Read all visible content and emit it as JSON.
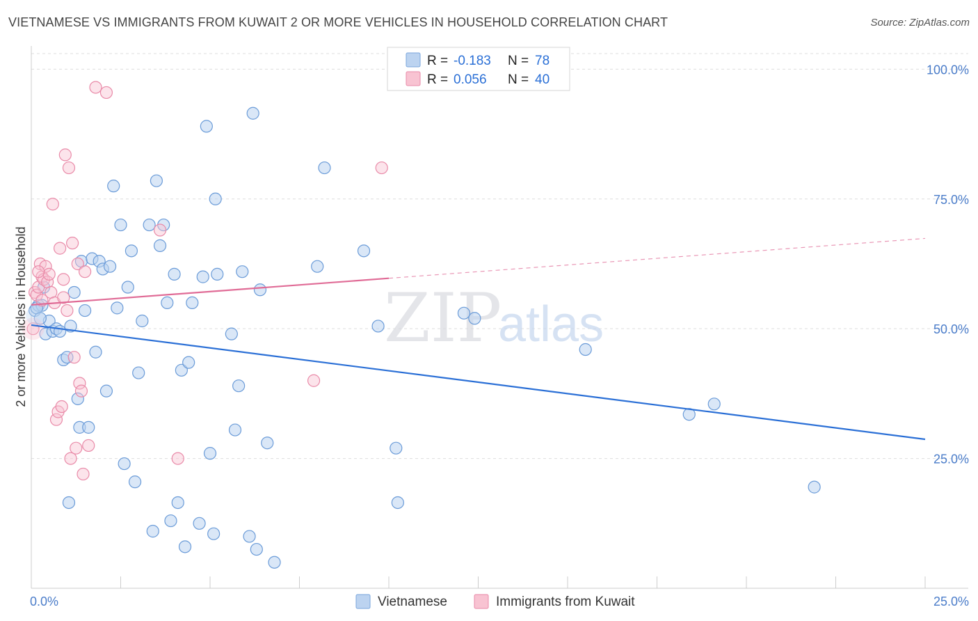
{
  "title": "VIETNAMESE VS IMMIGRANTS FROM KUWAIT 2 OR MORE VEHICLES IN HOUSEHOLD CORRELATION CHART",
  "source": "Source: ZipAtlas.com",
  "colors": {
    "blue": "#5b9bd5",
    "blue_line": "#2a6fd6",
    "pink": "#e98aa8",
    "pink_line": "#e06b96",
    "axis_text": "#4a7cc9",
    "grid": "#dddddd"
  },
  "chart_data": {
    "type": "scatter",
    "title": "VIETNAMESE VS IMMIGRANTS FROM KUWAIT 2 OR MORE VEHICLES IN HOUSEHOLD CORRELATION CHART",
    "xlabel": "",
    "ylabel": "2 or more Vehicles in Household",
    "xlim": [
      0,
      25
    ],
    "ylim": [
      0,
      103
    ],
    "x_tick_labels": [
      "0.0%",
      "25.0%"
    ],
    "y_ticks": [
      25,
      50,
      75,
      100
    ],
    "y_tick_labels": [
      "25.0%",
      "50.0%",
      "75.0%",
      "100.0%"
    ],
    "watermark": {
      "zip": "ZIP",
      "atlas": "atlas"
    },
    "legend_top": [
      {
        "r_label": "R =",
        "r_value": "-0.183",
        "n_label": "N =",
        "n_value": "78"
      },
      {
        "r_label": "R =",
        "r_value": "0.056",
        "n_label": "N =",
        "n_value": "40"
      }
    ],
    "legend_bottom": [
      "Vietnamese",
      "Immigrants from Kuwait"
    ],
    "series": [
      {
        "name": "Vietnamese",
        "trend": {
          "x0": 0,
          "y0": 50.7,
          "x1": 25,
          "y1": 28.7,
          "dashed_from": null
        },
        "points": [
          [
            0.1,
            53.5
          ],
          [
            0.2,
            54.5
          ],
          [
            0.3,
            54.5
          ],
          [
            0.4,
            49.0
          ],
          [
            0.5,
            51.5
          ],
          [
            0.6,
            49.5
          ],
          [
            0.7,
            50.0
          ],
          [
            0.8,
            49.5
          ],
          [
            0.9,
            44.0
          ],
          [
            1.0,
            44.5
          ],
          [
            1.1,
            50.5
          ],
          [
            1.2,
            57.0
          ],
          [
            1.3,
            36.5
          ],
          [
            1.35,
            31.0
          ],
          [
            1.4,
            63.0
          ],
          [
            1.5,
            53.5
          ],
          [
            1.6,
            31.0
          ],
          [
            1.7,
            63.5
          ],
          [
            1.8,
            45.5
          ],
          [
            1.9,
            63.0
          ],
          [
            2.0,
            61.5
          ],
          [
            2.1,
            38.0
          ],
          [
            2.2,
            62.0
          ],
          [
            2.3,
            77.5
          ],
          [
            2.4,
            54.0
          ],
          [
            2.5,
            70.0
          ],
          [
            2.6,
            24.0
          ],
          [
            2.7,
            58.0
          ],
          [
            2.8,
            65.0
          ],
          [
            2.9,
            20.5
          ],
          [
            3.0,
            41.5
          ],
          [
            3.1,
            51.5
          ],
          [
            3.3,
            70.0
          ],
          [
            3.4,
            11.0
          ],
          [
            3.5,
            78.5
          ],
          [
            3.6,
            66.0
          ],
          [
            3.7,
            70.0
          ],
          [
            3.9,
            13.0
          ],
          [
            4.0,
            60.5
          ],
          [
            4.1,
            16.5
          ],
          [
            4.2,
            42.0
          ],
          [
            4.3,
            8.0
          ],
          [
            4.4,
            43.5
          ],
          [
            4.5,
            55.0
          ],
          [
            4.7,
            12.5
          ],
          [
            4.8,
            60.0
          ],
          [
            4.9,
            89.0
          ],
          [
            5.0,
            26.0
          ],
          [
            5.1,
            10.5
          ],
          [
            5.15,
            75.0
          ],
          [
            5.2,
            60.5
          ],
          [
            5.6,
            49.0
          ],
          [
            5.7,
            30.5
          ],
          [
            5.8,
            39.0
          ],
          [
            5.9,
            61.0
          ],
          [
            6.1,
            10.0
          ],
          [
            6.2,
            91.5
          ],
          [
            6.3,
            7.5
          ],
          [
            6.4,
            57.5
          ],
          [
            6.6,
            28.0
          ],
          [
            6.8,
            5.0
          ],
          [
            8.0,
            62.0
          ],
          [
            8.2,
            81.0
          ],
          [
            9.3,
            65.0
          ],
          [
            9.7,
            50.5
          ],
          [
            10.2,
            27.0
          ],
          [
            10.25,
            16.5
          ],
          [
            12.1,
            53.0
          ],
          [
            12.4,
            52.0
          ],
          [
            15.5,
            46.0
          ],
          [
            18.4,
            33.5
          ],
          [
            19.1,
            35.5
          ],
          [
            21.9,
            19.5
          ],
          [
            0.15,
            54.0
          ],
          [
            0.25,
            52.0
          ],
          [
            0.35,
            58.0
          ],
          [
            1.05,
            16.5
          ],
          [
            3.8,
            55.0
          ]
        ]
      },
      {
        "name": "Immigrants from Kuwait",
        "trend": {
          "x0": 0,
          "y0": 54.6,
          "x1": 25,
          "y1": 67.4,
          "dashed_from": 10.0
        },
        "points": [
          [
            0.05,
            50.0
          ],
          [
            0.1,
            57.0
          ],
          [
            0.15,
            56.5
          ],
          [
            0.2,
            58.0
          ],
          [
            0.25,
            62.5
          ],
          [
            0.3,
            60.0
          ],
          [
            0.35,
            59.5
          ],
          [
            0.4,
            62.0
          ],
          [
            0.45,
            59.0
          ],
          [
            0.5,
            60.5
          ],
          [
            0.55,
            57.0
          ],
          [
            0.6,
            74.0
          ],
          [
            0.65,
            55.0
          ],
          [
            0.7,
            32.5
          ],
          [
            0.75,
            34.0
          ],
          [
            0.8,
            65.5
          ],
          [
            0.85,
            35.0
          ],
          [
            0.9,
            56.0
          ],
          [
            0.95,
            83.5
          ],
          [
            1.0,
            53.5
          ],
          [
            1.05,
            81.0
          ],
          [
            1.1,
            25.0
          ],
          [
            1.15,
            66.5
          ],
          [
            1.2,
            44.5
          ],
          [
            1.25,
            27.0
          ],
          [
            1.3,
            62.5
          ],
          [
            1.35,
            39.5
          ],
          [
            1.4,
            38.0
          ],
          [
            1.45,
            22.0
          ],
          [
            1.5,
            61.0
          ],
          [
            1.6,
            27.5
          ],
          [
            1.8,
            96.5
          ],
          [
            2.1,
            95.5
          ],
          [
            3.6,
            69.0
          ],
          [
            4.1,
            25.0
          ],
          [
            7.9,
            40.0
          ],
          [
            9.8,
            81.0
          ],
          [
            0.2,
            61.0
          ],
          [
            0.3,
            55.5
          ],
          [
            0.9,
            59.5
          ]
        ]
      }
    ]
  }
}
